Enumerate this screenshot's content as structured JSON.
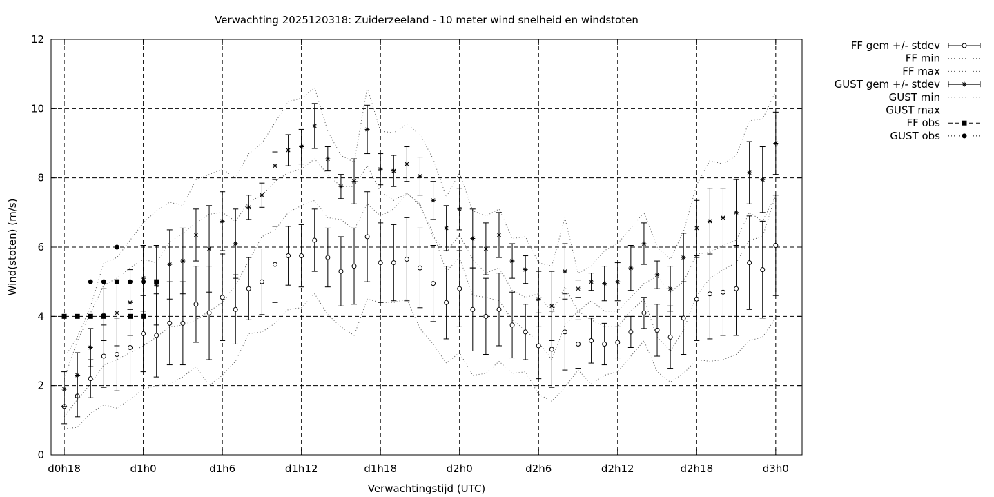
{
  "chart_data": {
    "type": "line",
    "title": "Verwachting 2025120318: Zuiderzeeland - 10 meter wind snelheid en windstoten",
    "xlabel": "Verwachtingstijd (UTC)",
    "ylabel": "Wind(stoten) (m/s)",
    "ylim": [
      0,
      12
    ],
    "yticks": [
      0,
      2,
      4,
      6,
      8,
      10,
      12
    ],
    "xlim_hours": [
      -1,
      56
    ],
    "xticks": [
      {
        "hour": 0,
        "label": "d0h18"
      },
      {
        "hour": 6,
        "label": "d1h0"
      },
      {
        "hour": 12,
        "label": "d1h6"
      },
      {
        "hour": 18,
        "label": "d1h12"
      },
      {
        "hour": 24,
        "label": "d1h18"
      },
      {
        "hour": 30,
        "label": "d2h0"
      },
      {
        "hour": 36,
        "label": "d2h6"
      },
      {
        "hour": 42,
        "label": "d2h12"
      },
      {
        "hour": 48,
        "label": "d2h18"
      },
      {
        "hour": 54,
        "label": "d3h0"
      }
    ],
    "grid": true,
    "legend_position": "outside-top-right",
    "hours": [
      0,
      1,
      2,
      3,
      4,
      5,
      6,
      7,
      8,
      9,
      10,
      11,
      12,
      13,
      14,
      15,
      16,
      17,
      18,
      19,
      20,
      21,
      22,
      23,
      24,
      25,
      26,
      27,
      28,
      29,
      30,
      31,
      32,
      33,
      34,
      35,
      36,
      37,
      38,
      39,
      40,
      41,
      42,
      43,
      44,
      45,
      46,
      47,
      48,
      49,
      50,
      51,
      52,
      53,
      54
    ],
    "series": [
      {
        "name": "FF gem +/- stdev",
        "style": "errorbar-open-circle",
        "values": [
          1.4,
          1.7,
          2.2,
          2.85,
          2.9,
          3.1,
          3.5,
          3.45,
          3.8,
          3.8,
          4.35,
          4.1,
          4.55,
          4.2,
          4.8,
          5.0,
          5.5,
          5.75,
          5.75,
          6.2,
          5.7,
          5.3,
          5.45,
          6.3,
          5.55,
          5.55,
          5.65,
          5.4,
          4.95,
          4.4,
          4.8,
          4.2,
          4.0,
          4.2,
          3.75,
          3.55,
          3.15,
          3.05,
          3.55,
          3.2,
          3.3,
          3.2,
          3.25,
          3.55,
          4.1,
          3.6,
          3.4,
          3.95,
          4.5,
          4.65,
          4.7,
          4.8,
          5.55,
          5.35,
          6.05
        ],
        "stdev": [
          0.5,
          0.6,
          0.55,
          0.9,
          1.05,
          1.1,
          1.1,
          1.2,
          1.2,
          1.2,
          1.1,
          1.35,
          1.25,
          1.0,
          0.9,
          0.95,
          1.1,
          0.85,
          0.9,
          0.9,
          0.85,
          1.0,
          1.1,
          1.3,
          1.15,
          1.1,
          1.2,
          1.15,
          1.1,
          1.05,
          1.1,
          1.2,
          1.1,
          1.05,
          0.95,
          0.8,
          0.95,
          1.1,
          1.1,
          0.7,
          0.65,
          0.6,
          0.45,
          0.45,
          0.45,
          0.75,
          0.9,
          1.05,
          1.2,
          1.3,
          1.25,
          1.35,
          1.35,
          1.4,
          1.45
        ]
      },
      {
        "name": "FF min",
        "style": "dotted",
        "values": [
          0.75,
          0.8,
          1.2,
          1.45,
          1.35,
          1.6,
          1.9,
          2.0,
          2.05,
          2.25,
          2.55,
          2.0,
          2.3,
          2.7,
          3.5,
          3.55,
          3.8,
          4.2,
          4.25,
          4.65,
          4.05,
          3.7,
          3.45,
          4.5,
          4.4,
          4.4,
          4.5,
          3.65,
          3.2,
          2.65,
          2.95,
          2.3,
          2.35,
          2.7,
          2.35,
          2.4,
          1.75,
          1.55,
          1.95,
          2.45,
          2.05,
          2.3,
          2.4,
          2.85,
          3.3,
          2.4,
          2.1,
          2.35,
          2.75,
          2.7,
          2.75,
          2.9,
          3.3,
          3.4,
          3.95
        ]
      },
      {
        "name": "FF max",
        "style": "dotted",
        "values": [
          2.2,
          3.3,
          4.1,
          4.9,
          5.1,
          5.4,
          5.65,
          5.55,
          6.15,
          6.4,
          6.7,
          6.95,
          7.0,
          6.75,
          7.3,
          7.5,
          7.9,
          8.15,
          8.25,
          8.55,
          8.1,
          7.75,
          7.75,
          8.35,
          7.6,
          7.35,
          7.55,
          7.25,
          6.3,
          5.85,
          6.35,
          5.65,
          5.25,
          5.4,
          4.75,
          4.55,
          4.65,
          4.1,
          4.85,
          4.15,
          4.45,
          4.15,
          4.15,
          4.55,
          4.95,
          5.15,
          4.7,
          5.0,
          5.8,
          5.85,
          6.05,
          6.2,
          7.0,
          6.75,
          7.5
        ]
      },
      {
        "name": "GUST gem +/- stdev",
        "style": "errorbar-asterisk",
        "values": [
          1.9,
          2.3,
          3.1,
          4.05,
          4.1,
          4.4,
          5.1,
          4.9,
          5.5,
          5.6,
          6.35,
          5.95,
          6.75,
          6.1,
          7.15,
          7.5,
          8.35,
          8.8,
          8.9,
          9.5,
          8.55,
          7.75,
          7.9,
          9.4,
          8.25,
          8.2,
          8.4,
          8.05,
          7.35,
          6.55,
          7.1,
          6.25,
          5.95,
          6.35,
          5.6,
          5.35,
          4.5,
          4.3,
          5.3,
          4.8,
          5.0,
          4.95,
          5.0,
          5.4,
          6.1,
          5.2,
          4.8,
          5.7,
          6.55,
          6.75,
          6.85,
          7.0,
          8.15,
          7.95,
          9.0
        ]
      },
      {
        "name": "GUST min",
        "style": "dotted",
        "values": [
          1.1,
          1.6,
          2.05,
          2.6,
          2.75,
          2.95,
          3.15,
          3.4,
          3.7,
          3.75,
          3.9,
          4.15,
          4.4,
          4.9,
          5.6,
          6.3,
          6.5,
          7.0,
          7.2,
          7.35,
          6.85,
          6.8,
          6.5,
          7.25,
          6.9,
          7.1,
          7.55,
          7.2,
          6.4,
          5.3,
          5.7,
          4.6,
          4.55,
          4.45,
          3.9,
          3.6,
          3.25,
          2.75,
          3.75,
          4.15,
          3.9,
          3.7,
          3.7,
          4.15,
          4.5,
          3.4,
          3.0,
          3.6,
          4.6,
          5.1,
          5.35,
          5.55,
          6.2,
          6.3,
          7.5
        ]
      },
      {
        "name": "GUST max",
        "style": "dotted",
        "values": [
          2.8,
          3.4,
          4.3,
          5.55,
          5.7,
          6.2,
          6.7,
          7.05,
          7.3,
          7.2,
          7.95,
          8.1,
          8.25,
          8.0,
          8.7,
          9.0,
          9.6,
          10.2,
          10.3,
          10.6,
          9.35,
          8.65,
          8.45,
          10.6,
          9.35,
          9.3,
          9.55,
          9.25,
          8.55,
          7.45,
          8.15,
          7.05,
          6.9,
          7.1,
          6.25,
          6.3,
          5.55,
          5.45,
          6.85,
          5.25,
          5.45,
          5.9,
          6.1,
          6.55,
          7.0,
          6.0,
          5.65,
          6.45,
          7.8,
          8.5,
          8.4,
          8.65,
          9.65,
          9.7,
          10.5
        ]
      },
      {
        "name": "FF obs",
        "style": "square-markers",
        "values": [
          4,
          4,
          4,
          4,
          5,
          4,
          4,
          5
        ]
      },
      {
        "name": "GUST obs",
        "style": "circle-markers",
        "values": [
          null,
          null,
          5,
          5,
          6,
          5,
          5,
          null
        ]
      }
    ],
    "stdev_gust": [
      0.5,
      0.65,
      0.55,
      0.75,
      0.95,
      0.95,
      0.95,
      1.15,
      1.0,
      0.95,
      0.75,
      1.25,
      0.85,
      1.0,
      0.35,
      0.35,
      0.4,
      0.45,
      0.5,
      0.65,
      0.35,
      0.35,
      0.65,
      0.7,
      0.45,
      0.45,
      0.5,
      0.55,
      0.55,
      0.65,
      0.6,
      0.85,
      0.75,
      0.65,
      0.5,
      0.4,
      0.8,
      1.0,
      0.8,
      0.25,
      0.25,
      0.5,
      0.55,
      0.65,
      0.6,
      0.4,
      0.65,
      0.7,
      0.8,
      0.95,
      0.85,
      0.95,
      0.9,
      0.95,
      0.9
    ]
  }
}
